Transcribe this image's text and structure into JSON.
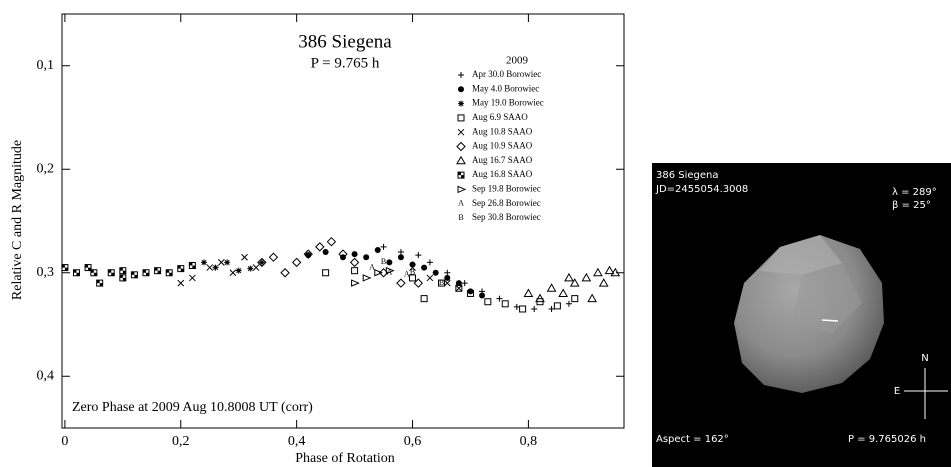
{
  "chart_data": {
    "type": "scatter",
    "title": "386 Siegena",
    "subtitle": "P = 9.765 h",
    "annotation": "Zero Phase at 2009 Aug 10.8008 UT (corr)",
    "xlabel": "Phase of Rotation",
    "ylabel": "Relative C and R Magnitude",
    "legend_title": "2009",
    "legend_position": "upper right",
    "xlim": [
      -0.005,
      0.965
    ],
    "ylim": [
      0.05,
      0.45
    ],
    "y_inverted": true,
    "xticks": [
      0,
      {
        "value": 0.2,
        "label": "0,2"
      },
      {
        "value": 0.4,
        "label": "0,4"
      },
      {
        "value": 0.6,
        "label": "0,6"
      },
      {
        "value": 0.8,
        "label": "0,8"
      }
    ],
    "yticks": [
      {
        "value": 0.1,
        "label": "0,1"
      },
      {
        "value": 0.2,
        "label": "0,2"
      },
      {
        "value": 0.3,
        "label": "0,3"
      },
      {
        "value": 0.4,
        "label": "0,4"
      }
    ],
    "series": [
      {
        "name": "Apr 30.0 Borowiec",
        "marker": "plus",
        "color": "#000000",
        "x": [
          0.55,
          0.58,
          0.61,
          0.63,
          0.66,
          0.69,
          0.72,
          0.75,
          0.78,
          0.81,
          0.84,
          0.87
        ],
        "values": [
          0.275,
          0.28,
          0.283,
          0.29,
          0.3,
          0.31,
          0.318,
          0.325,
          0.333,
          0.335,
          0.335,
          0.33
        ]
      },
      {
        "name": "May 4.0 Borowiec",
        "marker": "circle",
        "color": "#000000",
        "x": [
          0.42,
          0.45,
          0.48,
          0.5,
          0.52,
          0.54,
          0.56,
          0.58,
          0.6,
          0.62,
          0.64,
          0.66,
          0.68,
          0.7,
          0.72
        ],
        "values": [
          0.283,
          0.28,
          0.285,
          0.282,
          0.285,
          0.278,
          0.29,
          0.285,
          0.292,
          0.295,
          0.3,
          0.305,
          0.31,
          0.318,
          0.322
        ]
      },
      {
        "name": "May 19.0 Borowiec",
        "marker": "star",
        "color": "#000000",
        "x": [
          0.24,
          0.26,
          0.28,
          0.3,
          0.32,
          0.34
        ],
        "values": [
          0.29,
          0.295,
          0.29,
          0.298,
          0.296,
          0.29
        ]
      },
      {
        "name": "Aug 6.9 SAAO",
        "marker": "square",
        "color": "#000000",
        "x": [
          0.45,
          0.5,
          0.6,
          0.62,
          0.65,
          0.68,
          0.7,
          0.73,
          0.76,
          0.79,
          0.82,
          0.85,
          0.88
        ],
        "values": [
          0.3,
          0.298,
          0.305,
          0.325,
          0.31,
          0.315,
          0.32,
          0.328,
          0.33,
          0.335,
          0.328,
          0.332,
          0.325
        ]
      },
      {
        "name": "Aug 10.8 SAAO",
        "marker": "x",
        "color": "#000000",
        "x": [
          0.2,
          0.22,
          0.25,
          0.27,
          0.29,
          0.31,
          0.33,
          0.6,
          0.63,
          0.66,
          0.68
        ],
        "values": [
          0.31,
          0.305,
          0.295,
          0.29,
          0.3,
          0.285,
          0.295,
          0.295,
          0.305,
          0.31,
          0.315
        ]
      },
      {
        "name": "Aug 10.9 SAAO",
        "marker": "diamond",
        "color": "#000000",
        "x": [
          0.34,
          0.36,
          0.38,
          0.4,
          0.42,
          0.44,
          0.46,
          0.48,
          0.5,
          0.55,
          0.58,
          0.61
        ],
        "values": [
          0.29,
          0.285,
          0.3,
          0.29,
          0.282,
          0.275,
          0.27,
          0.282,
          0.29,
          0.3,
          0.31,
          0.31
        ]
      },
      {
        "name": "Aug 16.7 SAAO",
        "marker": "triangle",
        "color": "#000000",
        "x": [
          0.8,
          0.82,
          0.84,
          0.86,
          0.88,
          0.9,
          0.92,
          0.93,
          0.94,
          0.95,
          0.87,
          0.91
        ],
        "values": [
          0.32,
          0.325,
          0.315,
          0.32,
          0.31,
          0.305,
          0.3,
          0.31,
          0.298,
          0.3,
          0.305,
          0.325
        ]
      },
      {
        "name": "Aug 16.8 SAAO",
        "marker": "checker",
        "color": "#000000",
        "x": [
          0,
          0.02,
          0.04,
          0.06,
          0.08,
          0.1,
          0.12,
          0.14,
          0.16,
          0.18,
          0.2,
          0.22,
          0.05,
          0.1
        ],
        "values": [
          0.295,
          0.3,
          0.295,
          0.31,
          0.3,
          0.298,
          0.302,
          0.3,
          0.298,
          0.3,
          0.296,
          0.293,
          0.3,
          0.305
        ]
      },
      {
        "name": "Sep 19.8 Borowiec",
        "marker": "right-triangle",
        "color": "#000000",
        "x": [
          0.5,
          0.52,
          0.54,
          0.56
        ],
        "values": [
          0.31,
          0.305,
          0.3,
          0.298
        ]
      },
      {
        "name": "Sep 26.8 Borowiec",
        "marker": "A",
        "color": "#000000",
        "x": [
          0.53,
          0.56,
          0.59
        ],
        "values": [
          0.295,
          0.3,
          0.302
        ]
      },
      {
        "name": "Sep 30.8 Borowiec",
        "marker": "B",
        "color": "#000000",
        "x": [
          0.55,
          0.6,
          0.65
        ],
        "values": [
          0.29,
          0.3,
          0.31
        ]
      }
    ]
  },
  "model_view": {
    "title": "386 Siegena",
    "jd": "JD=2455054.3008",
    "lambda": "λ = 289°",
    "beta": "β =  25°",
    "aspect": "Aspect = 162°",
    "period": "P = 9.765026 h",
    "north": "N",
    "east": "E"
  }
}
